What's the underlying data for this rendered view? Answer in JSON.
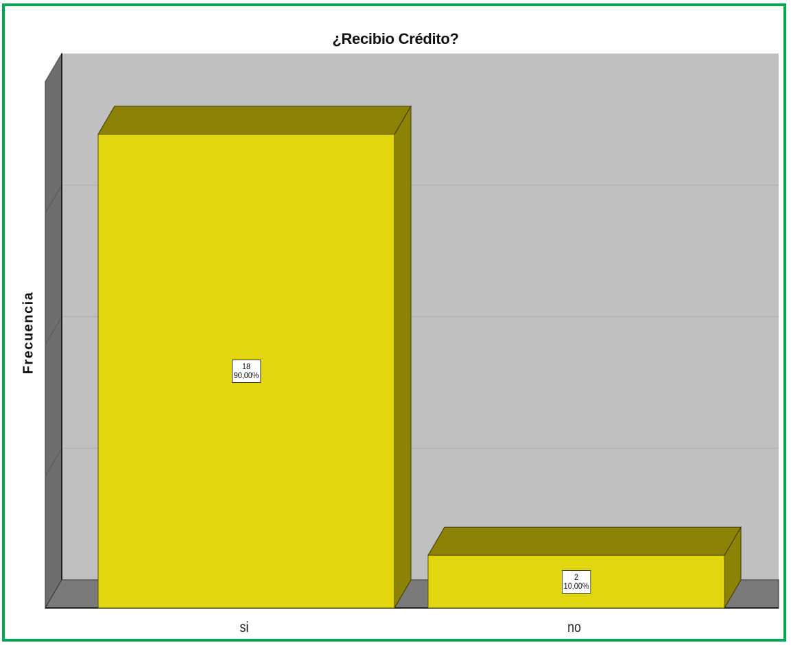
{
  "chart_data": {
    "type": "bar",
    "title": "¿Recibio Crédito?",
    "xlabel": "",
    "ylabel": "Frecuencia",
    "categories": [
      "si",
      "no"
    ],
    "values": [
      18,
      2
    ],
    "labels": [
      {
        "count": "18",
        "percent": "90,00%"
      },
      {
        "count": "2",
        "percent": "10,00%"
      }
    ],
    "ylim": [
      0,
      20
    ],
    "grid": true,
    "bar_color": "#e2d70f",
    "bar_top_color": "#8b8206",
    "bar_side_color": "#8b8206",
    "plot_bg": "#c0c0c0",
    "floor_color": "#7a7a7a",
    "frame_color": "#00a651"
  }
}
